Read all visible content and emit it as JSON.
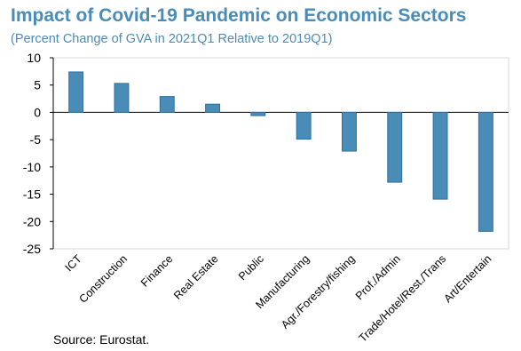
{
  "header": {
    "title": "Impact of Covid-19 Pandemic on Economic Sectors",
    "subtitle": "(Percent Change of GVA in 2021Q1 Relative to 2019Q1)"
  },
  "footer": {
    "source": "Source: Eurostat."
  },
  "chart_data": {
    "type": "bar",
    "title": "Impact of Covid-19 Pandemic on Economic Sectors",
    "subtitle": "(Percent Change of GVA in 2021Q1 Relative to 2019Q1)",
    "xlabel": "",
    "ylabel": "",
    "categories": [
      "ICT",
      "Construction",
      "Finance",
      "Real Estate",
      "Public",
      "Manufacturing",
      "Agr./Forestry/fishing",
      "Prof./Admin",
      "Trade/Hotel/Rest./Trans",
      "Art/Entertain"
    ],
    "values": [
      7.4,
      5.3,
      2.9,
      1.5,
      -0.6,
      -4.9,
      -7.1,
      -12.8,
      -15.9,
      -21.8
    ],
    "ylim": [
      -25,
      10
    ],
    "yticks": [
      10,
      5,
      0,
      -5,
      -10,
      -15,
      -20,
      -25
    ],
    "grid": false,
    "legend": "none",
    "bar_color": "#4a8cb8",
    "bar_edge_color": "#2f6f99"
  }
}
